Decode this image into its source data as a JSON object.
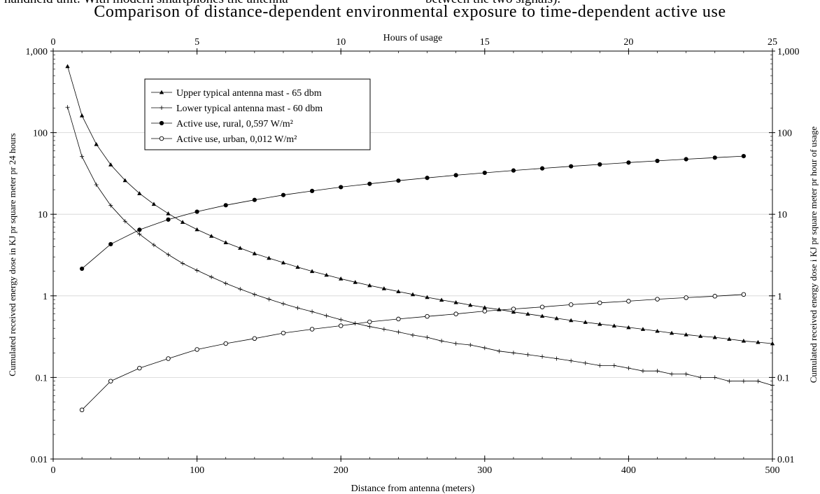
{
  "context": {
    "cropped_left": "handheld unit. With modern smartphones the antenna",
    "cropped_right": "between the two signals)."
  },
  "chart_data": {
    "type": "line",
    "title": "Comparison of distance-dependent environmental exposure to time-dependent active use",
    "xlabel": "Distance from antenna (meters)",
    "x2label": "Hours of usage",
    "ylabel": "Cumulated received energy dose in KJ pr square meter pr 24 hours",
    "y2label": "Cumulated received energy dose i KJ pr square meter pr hour of usage",
    "xlim": [
      0,
      500
    ],
    "x2lim": [
      0,
      25
    ],
    "ylim": [
      0.01,
      1000
    ],
    "yscale": "log",
    "xticks": [
      "0",
      "100",
      "200",
      "300",
      "400",
      "500"
    ],
    "x2ticks": [
      "0",
      "5",
      "10",
      "15",
      "20",
      "25"
    ],
    "yticks": [
      "0.01",
      "0.1",
      "1",
      "10",
      "100",
      "1,000"
    ],
    "legend_position": "top-left",
    "series": [
      {
        "name": "Upper typical antenna mast - 65 dbm",
        "marker": "triangle",
        "x": [
          10,
          20,
          30,
          40,
          50,
          60,
          70,
          80,
          90,
          100,
          110,
          120,
          130,
          140,
          150,
          160,
          170,
          180,
          190,
          200,
          210,
          220,
          230,
          240,
          250,
          260,
          270,
          280,
          290,
          300,
          310,
          320,
          330,
          340,
          350,
          360,
          370,
          380,
          390,
          400,
          410,
          420,
          430,
          440,
          450,
          460,
          470,
          480,
          490,
          500
        ],
        "values": [
          650,
          162,
          72,
          40.5,
          26,
          18,
          13.3,
          10.2,
          8.0,
          6.5,
          5.4,
          4.5,
          3.85,
          3.3,
          2.9,
          2.55,
          2.25,
          2.0,
          1.8,
          1.62,
          1.47,
          1.34,
          1.23,
          1.13,
          1.04,
          0.96,
          0.89,
          0.83,
          0.77,
          0.72,
          0.68,
          0.635,
          0.6,
          0.565,
          0.53,
          0.5,
          0.475,
          0.45,
          0.43,
          0.41,
          0.39,
          0.37,
          0.35,
          0.335,
          0.32,
          0.31,
          0.295,
          0.28,
          0.27,
          0.26
        ]
      },
      {
        "name": "Lower typical antenna mast - 60 dbm",
        "marker": "plus",
        "x": [
          10,
          20,
          30,
          40,
          50,
          60,
          70,
          80,
          90,
          100,
          110,
          120,
          130,
          140,
          150,
          160,
          170,
          180,
          190,
          200,
          210,
          220,
          230,
          240,
          250,
          260,
          270,
          280,
          290,
          300,
          310,
          320,
          330,
          340,
          350,
          360,
          370,
          380,
          390,
          400,
          410,
          420,
          430,
          440,
          450,
          460,
          470,
          480,
          490,
          500
        ],
        "values": [
          205,
          51,
          23,
          12.8,
          8.2,
          5.7,
          4.2,
          3.2,
          2.5,
          2.05,
          1.7,
          1.42,
          1.21,
          1.04,
          0.91,
          0.8,
          0.71,
          0.64,
          0.57,
          0.51,
          0.46,
          0.42,
          0.39,
          0.36,
          0.33,
          0.31,
          0.28,
          0.26,
          0.25,
          0.23,
          0.21,
          0.2,
          0.19,
          0.18,
          0.17,
          0.16,
          0.15,
          0.14,
          0.14,
          0.13,
          0.12,
          0.12,
          0.11,
          0.11,
          0.1,
          0.1,
          0.09,
          0.09,
          0.09,
          0.08
        ]
      },
      {
        "name": "Active use, rural, 0,597 W/m²",
        "marker": "filled-circle",
        "axis": "top",
        "x": [
          1,
          2,
          3,
          4,
          5,
          6,
          7,
          8,
          9,
          10,
          11,
          12,
          13,
          14,
          15,
          16,
          17,
          18,
          19,
          20,
          21,
          22,
          23,
          24
        ],
        "values": [
          2.15,
          4.3,
          6.45,
          8.6,
          10.75,
          12.9,
          15.0,
          17.2,
          19.3,
          21.5,
          23.6,
          25.8,
          27.9,
          30.1,
          32.2,
          34.4,
          36.5,
          38.7,
          40.8,
          43.0,
          45.1,
          47.3,
          49.4,
          51.6
        ]
      },
      {
        "name": "Active use, urban, 0,012 W/m²",
        "marker": "open-circle",
        "axis": "top",
        "x": [
          1,
          2,
          3,
          4,
          5,
          6,
          7,
          8,
          9,
          10,
          11,
          12,
          13,
          14,
          15,
          16,
          17,
          18,
          19,
          20,
          21,
          22,
          23,
          24
        ],
        "values": [
          0.04,
          0.09,
          0.13,
          0.17,
          0.22,
          0.26,
          0.3,
          0.35,
          0.39,
          0.43,
          0.48,
          0.52,
          0.56,
          0.6,
          0.65,
          0.69,
          0.73,
          0.78,
          0.82,
          0.86,
          0.91,
          0.95,
          0.99,
          1.04
        ]
      }
    ]
  }
}
